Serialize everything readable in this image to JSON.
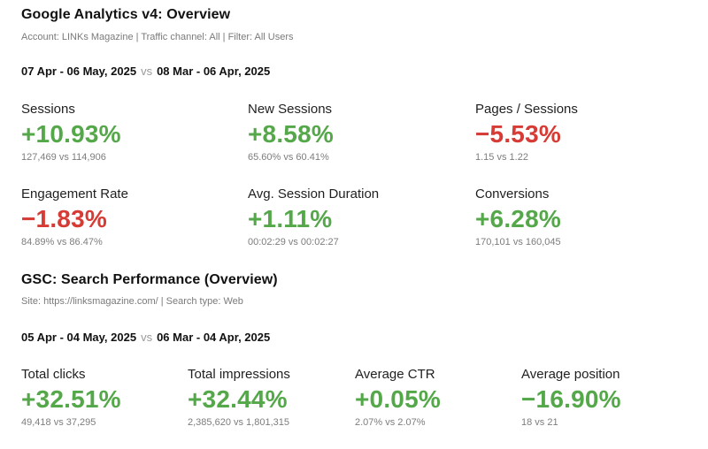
{
  "colors": {
    "positive": "#55a84a",
    "negative": "#d63b35"
  },
  "ga": {
    "title": "Google Analytics v4: Overview",
    "subtitle": "Account: LINKs Magazine | Traffic channel: All | Filter: All Users",
    "period_current": "07 Apr - 06 May, 2025",
    "vs": "vs",
    "period_previous": "08 Mar - 06 Apr, 2025",
    "metrics": [
      {
        "label": "Sessions",
        "value": "+10.93%",
        "trend": "positive",
        "compare": "127,469 vs 114,906"
      },
      {
        "label": "New Sessions",
        "value": "+8.58%",
        "trend": "positive",
        "compare": "65.60% vs 60.41%"
      },
      {
        "label": "Pages / Sessions",
        "value": "−5.53%",
        "trend": "negative",
        "compare": "1.15 vs 1.22"
      },
      {
        "label": "Engagement Rate",
        "value": "−1.83%",
        "trend": "negative",
        "compare": "84.89% vs 86.47%"
      },
      {
        "label": "Avg. Session Duration",
        "value": "+1.11%",
        "trend": "positive",
        "compare": "00:02:29 vs 00:02:27"
      },
      {
        "label": "Conversions",
        "value": "+6.28%",
        "trend": "positive",
        "compare": "170,101 vs 160,045"
      }
    ]
  },
  "gsc": {
    "title": "GSC: Search Performance (Overview)",
    "subtitle": "Site: https://linksmagazine.com/ | Search type: Web",
    "period_current": "05 Apr - 04 May, 2025",
    "vs": "vs",
    "period_previous": "06 Mar - 04 Apr, 2025",
    "metrics": [
      {
        "label": "Total clicks",
        "value": "+32.51%",
        "trend": "positive",
        "compare": "49,418 vs 37,295"
      },
      {
        "label": "Total impressions",
        "value": "+32.44%",
        "trend": "positive",
        "compare": "2,385,620 vs 1,801,315"
      },
      {
        "label": "Average CTR",
        "value": "+0.05%",
        "trend": "positive",
        "compare": "2.07% vs 2.07%"
      },
      {
        "label": "Average position",
        "value": "−16.90%",
        "trend": "positive",
        "compare": "18 vs 21"
      }
    ]
  }
}
